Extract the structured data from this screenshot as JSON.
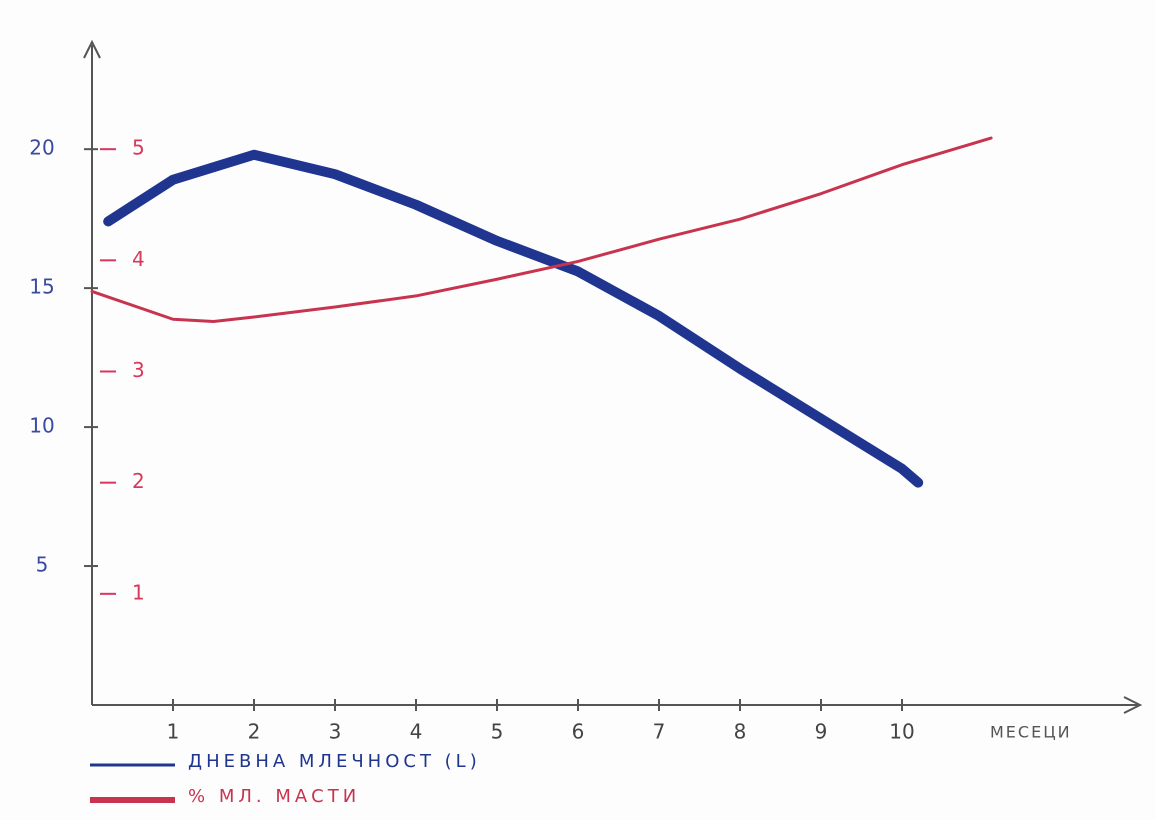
{
  "chart_data": {
    "type": "line",
    "x_label": "МЕСЕЦИ",
    "xlim": [
      0,
      13
    ],
    "xticks": [
      1,
      2,
      3,
      4,
      5,
      6,
      7,
      8,
      9,
      10
    ],
    "ylim": [
      0,
      24
    ],
    "yticks": [
      5,
      10,
      15,
      20
    ],
    "y2lim": [
      0,
      6
    ],
    "y2ticks": [
      1,
      2,
      3,
      4,
      5
    ],
    "series": [
      {
        "name": "ДНЕВНА МЛЕЧНОСТ (L)",
        "color": "#1f3590",
        "x": [
          0.2,
          1,
          2,
          3,
          4,
          5,
          6,
          7,
          8,
          9,
          10,
          10.2
        ],
        "values": [
          17.4,
          18.9,
          19.8,
          19.1,
          18.0,
          16.7,
          15.6,
          14.0,
          12.1,
          10.3,
          8.5,
          8.0
        ]
      },
      {
        "name": "% МЛ. МАСТИ",
        "color": "#c8344f",
        "axis": "y2",
        "x": [
          0,
          1,
          1.5,
          2,
          3,
          4,
          5,
          6,
          7,
          8,
          9,
          10,
          11.1
        ],
        "values": [
          3.72,
          3.47,
          3.45,
          3.49,
          3.58,
          3.68,
          3.83,
          3.99,
          4.19,
          4.37,
          4.6,
          4.86,
          5.1
        ]
      }
    ]
  }
}
